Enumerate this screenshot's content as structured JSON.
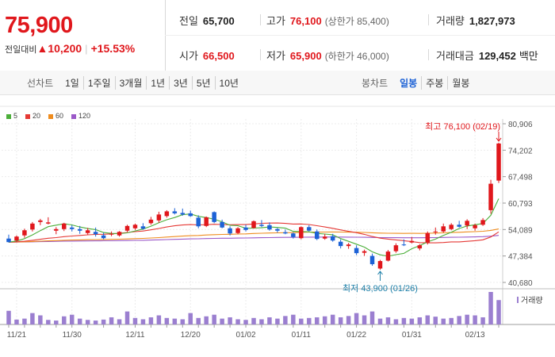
{
  "quote": {
    "price": "75,900",
    "change_label": "전일대비",
    "change_arrow": "▲",
    "change_value": "10,200",
    "change_percent": "+15.53%"
  },
  "stats": {
    "prev_close_label": "전일",
    "prev_close": "65,700",
    "high_label": "고가",
    "high": "76,100",
    "upper_limit": "(상한가 85,400)",
    "volume_label": "거래량",
    "volume": "1,827,973",
    "open_label": "시가",
    "open": "66,500",
    "low_label": "저가",
    "low": "65,900",
    "lower_limit": "(하한가 46,000)",
    "amount_label": "거래대금",
    "amount": "129,452",
    "amount_unit": "백만"
  },
  "toolbar": {
    "line_title": "선차트",
    "line_periods": [
      "1일",
      "1주일",
      "3개월",
      "1년",
      "3년",
      "5년",
      "10년"
    ],
    "candle_title": "봉차트",
    "candle_periods": [
      "일봉",
      "주봉",
      "월봉"
    ],
    "active_candle": "일봉"
  },
  "colors": {
    "up": "#e0171c",
    "down": "#1d62d6",
    "ma5": "#4caf3a",
    "ma20": "#e53935",
    "ma60": "#ef8c1e",
    "ma120": "#9b59c8",
    "volume": "#9b7fd0"
  },
  "chart_data": {
    "type": "candlestick",
    "legend": [
      {
        "name": "5",
        "color": "#4caf3a"
      },
      {
        "name": "20",
        "color": "#e53935"
      },
      {
        "name": "60",
        "color": "#ef8c1e"
      },
      {
        "name": "120",
        "color": "#9b59c8"
      }
    ],
    "y_ticks": [
      "80,906",
      "74,202",
      "67,498",
      "60,793",
      "54,089",
      "47,384",
      "40,680"
    ],
    "ylim": [
      40680,
      80906
    ],
    "x_ticks": [
      "11/21",
      "11/30",
      "12/11",
      "12/20",
      "01/02",
      "01/11",
      "01/22",
      "01/31",
      "02/13"
    ],
    "x_tick_index": [
      1,
      8,
      16,
      23,
      30,
      37,
      44,
      51,
      59
    ],
    "high_annotation": "최고 76,100 (02/19)",
    "low_annotation": "최저 43,900 (01/26)",
    "volume_label": "거래량",
    "candles": [
      {
        "o": 51800,
        "h": 52800,
        "l": 50800,
        "c": 50900
      },
      {
        "o": 51300,
        "h": 52600,
        "l": 50900,
        "c": 52300
      },
      {
        "o": 52600,
        "h": 54300,
        "l": 52000,
        "c": 53900
      },
      {
        "o": 54100,
        "h": 56000,
        "l": 53600,
        "c": 55600
      },
      {
        "o": 56000,
        "h": 56800,
        "l": 55200,
        "c": 56400
      },
      {
        "o": 55600,
        "h": 57200,
        "l": 55400,
        "c": 55900
      },
      {
        "o": 53800,
        "h": 54700,
        "l": 52900,
        "c": 54200
      },
      {
        "o": 54200,
        "h": 55800,
        "l": 53700,
        "c": 55600
      },
      {
        "o": 54600,
        "h": 55200,
        "l": 53600,
        "c": 54200
      },
      {
        "o": 54200,
        "h": 55000,
        "l": 53000,
        "c": 53800
      },
      {
        "o": 53200,
        "h": 54500,
        "l": 52800,
        "c": 53900
      },
      {
        "o": 53500,
        "h": 54600,
        "l": 52300,
        "c": 52900
      },
      {
        "o": 52600,
        "h": 53300,
        "l": 51600,
        "c": 51900
      },
      {
        "o": 52800,
        "h": 53600,
        "l": 52400,
        "c": 53000
      },
      {
        "o": 52600,
        "h": 53700,
        "l": 52300,
        "c": 53500
      },
      {
        "o": 53800,
        "h": 55300,
        "l": 53500,
        "c": 55000
      },
      {
        "o": 54400,
        "h": 55600,
        "l": 54000,
        "c": 55300
      },
      {
        "o": 54900,
        "h": 55700,
        "l": 54000,
        "c": 54300
      },
      {
        "o": 55700,
        "h": 57300,
        "l": 55300,
        "c": 56600
      },
      {
        "o": 56400,
        "h": 58600,
        "l": 55800,
        "c": 57900
      },
      {
        "o": 57500,
        "h": 59000,
        "l": 57100,
        "c": 58700
      },
      {
        "o": 58700,
        "h": 59500,
        "l": 57900,
        "c": 58200
      },
      {
        "o": 58300,
        "h": 59400,
        "l": 57600,
        "c": 57900
      },
      {
        "o": 58200,
        "h": 58900,
        "l": 57300,
        "c": 57500
      },
      {
        "o": 57100,
        "h": 57700,
        "l": 54400,
        "c": 54900
      },
      {
        "o": 55000,
        "h": 57400,
        "l": 54700,
        "c": 57200
      },
      {
        "o": 58500,
        "h": 58700,
        "l": 55700,
        "c": 56000
      },
      {
        "o": 56000,
        "h": 56600,
        "l": 54400,
        "c": 54600
      },
      {
        "o": 54400,
        "h": 54900,
        "l": 52600,
        "c": 53100
      },
      {
        "o": 53200,
        "h": 54700,
        "l": 52900,
        "c": 54400
      },
      {
        "o": 54600,
        "h": 55300,
        "l": 53600,
        "c": 54000
      },
      {
        "o": 54500,
        "h": 56400,
        "l": 54300,
        "c": 56200
      },
      {
        "o": 55300,
        "h": 56500,
        "l": 54700,
        "c": 55000
      },
      {
        "o": 55200,
        "h": 55900,
        "l": 53800,
        "c": 54100
      },
      {
        "o": 54200,
        "h": 54500,
        "l": 53300,
        "c": 53800
      },
      {
        "o": 53400,
        "h": 54100,
        "l": 52900,
        "c": 53100
      },
      {
        "o": 53100,
        "h": 53400,
        "l": 51800,
        "c": 52200
      },
      {
        "o": 51900,
        "h": 54900,
        "l": 51600,
        "c": 54700
      },
      {
        "o": 54700,
        "h": 55200,
        "l": 53600,
        "c": 53800
      },
      {
        "o": 53600,
        "h": 54100,
        "l": 51400,
        "c": 51700
      },
      {
        "o": 51800,
        "h": 53000,
        "l": 51500,
        "c": 52300
      },
      {
        "o": 52400,
        "h": 53000,
        "l": 51000,
        "c": 51300
      },
      {
        "o": 51000,
        "h": 51600,
        "l": 49300,
        "c": 49900
      },
      {
        "o": 49900,
        "h": 50700,
        "l": 49200,
        "c": 50300
      },
      {
        "o": 49400,
        "h": 50100,
        "l": 47600,
        "c": 48100
      },
      {
        "o": 48200,
        "h": 49000,
        "l": 47400,
        "c": 48600
      },
      {
        "o": 47400,
        "h": 48000,
        "l": 44900,
        "c": 45300
      },
      {
        "o": 44200,
        "h": 46400,
        "l": 43900,
        "c": 46100
      },
      {
        "o": 46200,
        "h": 48900,
        "l": 46000,
        "c": 48500
      },
      {
        "o": 48600,
        "h": 50600,
        "l": 48200,
        "c": 50100
      },
      {
        "o": 50300,
        "h": 51600,
        "l": 49900,
        "c": 50200
      },
      {
        "o": 50800,
        "h": 52200,
        "l": 50600,
        "c": 51200
      },
      {
        "o": 49300,
        "h": 50400,
        "l": 48800,
        "c": 50100
      },
      {
        "o": 50800,
        "h": 53600,
        "l": 50300,
        "c": 53200
      },
      {
        "o": 53400,
        "h": 54600,
        "l": 52800,
        "c": 53600
      },
      {
        "o": 53600,
        "h": 55600,
        "l": 53300,
        "c": 54900
      },
      {
        "o": 54200,
        "h": 55700,
        "l": 53900,
        "c": 55300
      },
      {
        "o": 55300,
        "h": 56300,
        "l": 54600,
        "c": 54800
      },
      {
        "o": 55100,
        "h": 56700,
        "l": 54200,
        "c": 56300
      },
      {
        "o": 54400,
        "h": 55600,
        "l": 53800,
        "c": 55200
      },
      {
        "o": 55300,
        "h": 57000,
        "l": 55000,
        "c": 56500
      },
      {
        "o": 59000,
        "h": 66700,
        "l": 58100,
        "c": 65700
      },
      {
        "o": 66500,
        "h": 76100,
        "l": 65900,
        "c": 75900
      }
    ],
    "volume": [
      42,
      15,
      18,
      35,
      28,
      14,
      12,
      25,
      30,
      18,
      14,
      12,
      15,
      22,
      16,
      40,
      20,
      16,
      22,
      28,
      20,
      18,
      16,
      35,
      20,
      25,
      30,
      18,
      22,
      16,
      14,
      20,
      16,
      22,
      18,
      26,
      30,
      18,
      20,
      22,
      25,
      30,
      22,
      26,
      35,
      28,
      40,
      18,
      22,
      16,
      20,
      18,
      22,
      28,
      24,
      18,
      20,
      26,
      30,
      28,
      22,
      100,
      75
    ]
  }
}
